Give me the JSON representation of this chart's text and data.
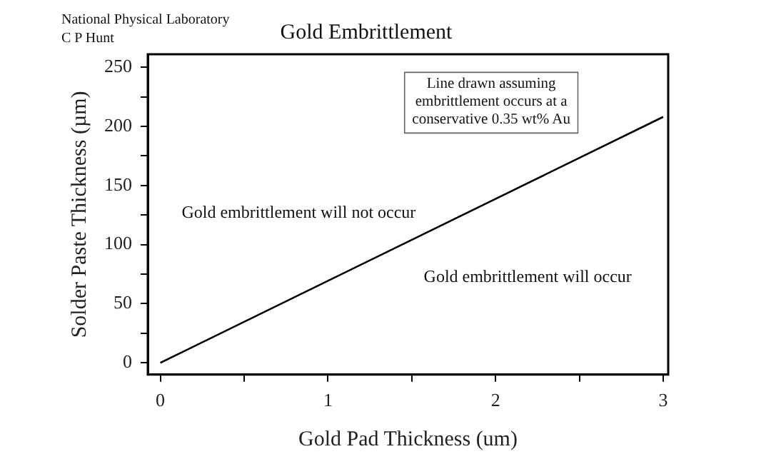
{
  "chart_data": {
    "type": "line",
    "title": "Gold Embrittlement",
    "xlabel": "Gold Pad Thickness (um)",
    "ylabel": "Solder Paste Thickness (µm)",
    "x": [
      0,
      3
    ],
    "series": [
      {
        "color": "#000000",
        "values": [
          0,
          208
        ]
      }
    ],
    "xlim": [
      -0.075,
      3.03
    ],
    "ylim": [
      -10,
      261
    ],
    "xticks": [
      0,
      {
        "value": 0.5,
        "label": null
      },
      1,
      {
        "value": 1.5,
        "label": null
      },
      2,
      {
        "value": 2.5,
        "label": null
      },
      3
    ],
    "yticks": [
      0,
      {
        "value": 25,
        "label": null
      },
      50,
      {
        "value": 75,
        "label": null
      },
      100,
      {
        "value": 125,
        "label": null
      },
      150,
      {
        "value": 175,
        "label": null
      },
      200,
      {
        "value": 225,
        "label": null
      },
      250
    ],
    "grid": false,
    "legend": false,
    "marker": "none",
    "line_style": "solid",
    "annotations": [
      "National Physical Laboratory",
      "C P Hunt",
      "Line drawn assuming embrittlement occurs at a conservative 0.35 wt% Au",
      "Gold embrittlement will not occur",
      "Gold embrittlement will occur"
    ]
  }
}
